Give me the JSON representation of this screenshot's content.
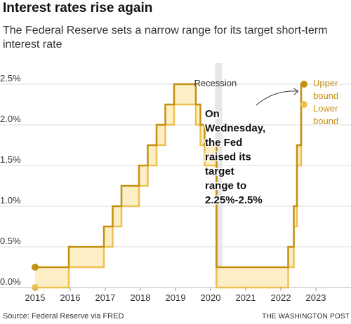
{
  "header": {
    "title": "Interest rates rise again",
    "subtitle": "The Federal Reserve sets a narrow range for its target short-term interest rate"
  },
  "footer": {
    "source": "Source: Federal Reserve via FRED",
    "credit": "THE WASHINGTON POST"
  },
  "colors": {
    "upper": "#c4900f",
    "lower": "#ecc152",
    "band": "#fdeec5",
    "recession": "#e6e6e6"
  },
  "chart_data": {
    "type": "line",
    "title": "",
    "xlabel": "",
    "ylabel": "",
    "xlim": [
      2015,
      2023
    ],
    "ylim": [
      0,
      2.5
    ],
    "x_ticks": [
      "2015",
      "2016",
      "2017",
      "2018",
      "2019",
      "2020",
      "2021",
      "2022",
      "2023"
    ],
    "y_ticks": [
      "0.0%",
      "0.5%",
      "1.0%",
      "1.5%",
      "2.0%",
      "2.5%"
    ],
    "grid": true,
    "legend": "right",
    "series": [
      {
        "name": "Upper bound",
        "step": true,
        "points": [
          [
            2015.0,
            0.25
          ],
          [
            2015.96,
            0.5
          ],
          [
            2016.96,
            0.75
          ],
          [
            2017.21,
            1.0
          ],
          [
            2017.46,
            1.25
          ],
          [
            2017.96,
            1.5
          ],
          [
            2018.21,
            1.75
          ],
          [
            2018.46,
            2.0
          ],
          [
            2018.71,
            2.25
          ],
          [
            2018.96,
            2.5
          ],
          [
            2019.58,
            2.25
          ],
          [
            2019.71,
            2.0
          ],
          [
            2019.83,
            1.75
          ],
          [
            2020.17,
            0.25
          ],
          [
            2022.21,
            0.5
          ],
          [
            2022.37,
            1.0
          ],
          [
            2022.46,
            1.75
          ],
          [
            2022.58,
            2.5
          ],
          [
            2022.6,
            2.5
          ]
        ]
      },
      {
        "name": "Lower bound",
        "step": true,
        "points": [
          [
            2015.0,
            0.0
          ],
          [
            2015.96,
            0.25
          ],
          [
            2016.96,
            0.5
          ],
          [
            2017.21,
            0.75
          ],
          [
            2017.46,
            1.0
          ],
          [
            2017.96,
            1.25
          ],
          [
            2018.21,
            1.5
          ],
          [
            2018.46,
            1.75
          ],
          [
            2018.71,
            2.0
          ],
          [
            2018.96,
            2.25
          ],
          [
            2019.58,
            2.0
          ],
          [
            2019.71,
            1.75
          ],
          [
            2019.83,
            1.5
          ],
          [
            2020.17,
            0.0
          ],
          [
            2022.21,
            0.25
          ],
          [
            2022.37,
            0.75
          ],
          [
            2022.46,
            1.5
          ],
          [
            2022.58,
            2.25
          ],
          [
            2022.6,
            2.25
          ]
        ]
      }
    ],
    "recession": {
      "label": "Recession",
      "start": 2020.13,
      "end": 2020.33
    },
    "annotations": [
      {
        "text_lines": [
          "On",
          "Wednesday,",
          "the Fed",
          "raised its",
          "target",
          "range to",
          "2.25%-2.5%"
        ]
      }
    ],
    "legend_labels": {
      "upper": [
        "Upper",
        "bound"
      ],
      "lower": [
        "Lower",
        "bound"
      ]
    }
  }
}
